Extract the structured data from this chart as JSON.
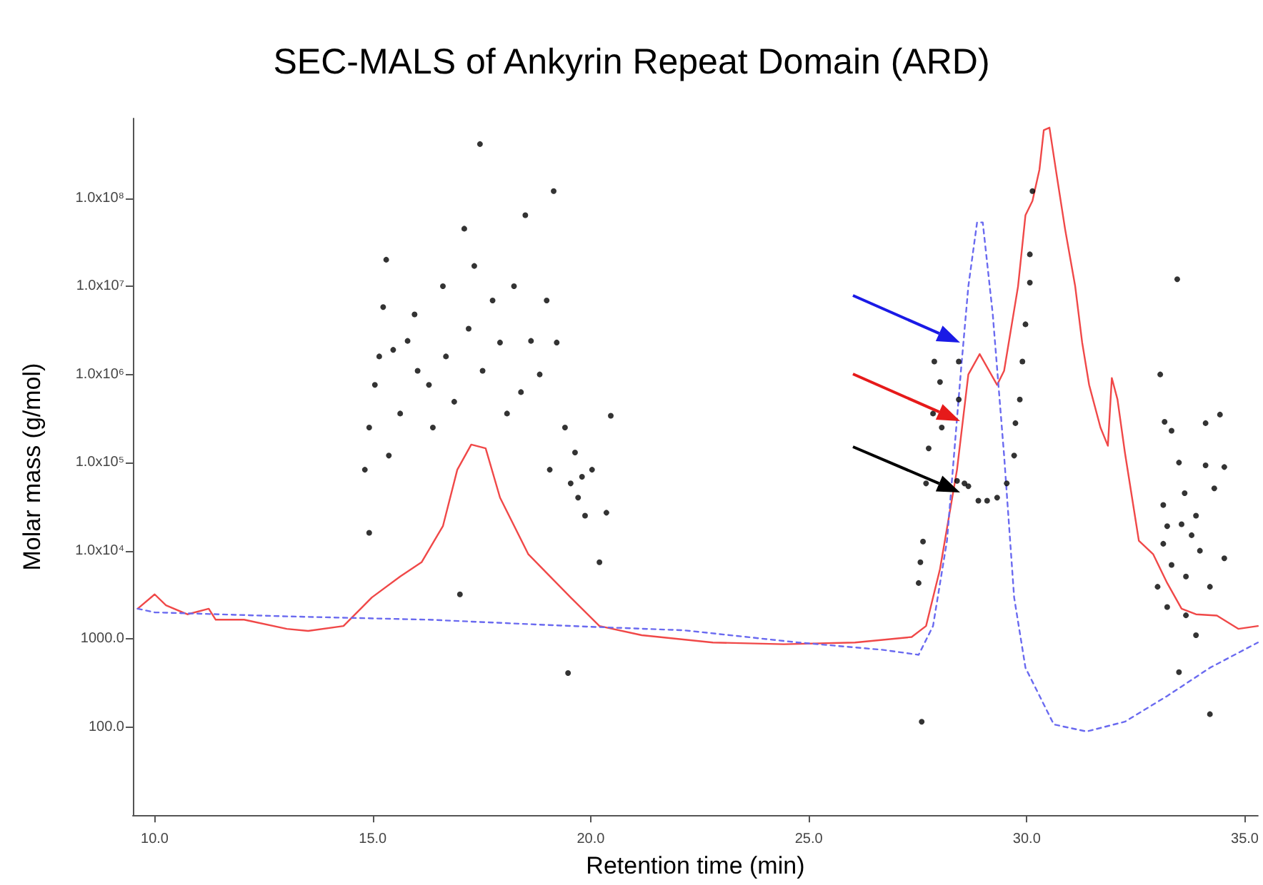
{
  "chart_data": {
    "type": "line",
    "title": "SEC-MALS of Ankyrin Repeat Domain (ARD)",
    "xlabel": "Retention time (min)",
    "ylabel": "Molar mass (g/mol)",
    "log": "y",
    "xlim": [
      9.5,
      35.3
    ],
    "ylim": [
      10,
      800000000
    ],
    "xticks": [
      {
        "value": 10,
        "label": "10.0"
      },
      {
        "value": 15,
        "label": "15.0"
      },
      {
        "value": 20,
        "label": "20.0"
      },
      {
        "value": 25,
        "label": "25.0"
      },
      {
        "value": 30,
        "label": "30.0"
      },
      {
        "value": 35,
        "label": "35.0"
      }
    ],
    "yticks": [
      {
        "value": 100,
        "label": "100.0"
      },
      {
        "value": 1000,
        "label": "1000.0"
      },
      {
        "value": 10000,
        "label": "1.0x10⁴"
      },
      {
        "value": 100000,
        "label": "1.0x10⁵"
      },
      {
        "value": 1000000,
        "label": "1.0x10⁶"
      },
      {
        "value": 10000000,
        "label": "1.0x10⁷"
      },
      {
        "value": 100000000,
        "label": "1.0x10⁸"
      }
    ],
    "series": [
      {
        "color": "#f04848",
        "line_style": "solid",
        "marker": "none",
        "x": [
          9.61,
          10.0,
          10.26,
          10.75,
          11.24,
          11.4,
          12.05,
          13.03,
          13.52,
          14.33,
          14.98,
          15.63,
          16.12,
          16.61,
          16.94,
          17.26,
          17.59,
          17.92,
          18.57,
          19.54,
          20.2,
          21.17,
          22.8,
          24.43,
          26.06,
          27.36,
          27.69,
          28.01,
          28.4,
          28.66,
          28.92,
          29.32,
          29.48,
          29.8,
          29.97,
          30.13,
          30.29,
          30.39,
          30.52,
          30.68,
          30.88,
          31.11,
          31.27,
          31.43,
          31.69,
          31.86,
          31.95,
          32.08,
          32.25,
          32.57,
          32.9,
          33.22,
          33.55,
          33.88,
          34.36,
          34.85,
          35.3
        ],
        "values": [
          2200,
          3200,
          2400,
          1900,
          2200,
          1650,
          1650,
          1300,
          1230,
          1400,
          2950,
          5100,
          7400,
          19000,
          83000,
          160000,
          145000,
          40000,
          9100,
          2950,
          1400,
          1100,
          910,
          870,
          910,
          1050,
          1400,
          6200,
          83000,
          1000000,
          1700000,
          760000,
          1100000,
          10000000,
          64000000,
          93000000,
          210000000,
          590000000,
          630000000,
          190000000,
          44000000,
          10000000,
          2300000,
          760000,
          250000,
          155000,
          910000,
          520000,
          130000,
          13000,
          9100,
          4300,
          2200,
          1900,
          1840,
          1300,
          1400
        ]
      },
      {
        "color": "#6a6af0",
        "line_style": "dashed",
        "marker": "none",
        "x": [
          9.61,
          10.0,
          13.03,
          16.29,
          19.54,
          22.15,
          24.76,
          26.71,
          27.52,
          27.85,
          28.17,
          28.49,
          28.66,
          28.86,
          28.99,
          29.22,
          29.48,
          29.71,
          29.97,
          30.62,
          31.37,
          32.25,
          33.22,
          34.2,
          35.3
        ],
        "values": [
          2200,
          2000,
          1800,
          1650,
          1400,
          1250,
          910,
          750,
          660,
          1400,
          13000,
          1100000,
          10000000,
          53000000,
          53000000,
          4800000,
          120000,
          2950,
          470,
          107,
          89,
          115,
          225,
          470,
          910
        ]
      },
      {
        "type": "scatter",
        "color": "#000000",
        "marker": "circle",
        "x": [
          14.82,
          14.92,
          15.05,
          15.15,
          15.24,
          15.31,
          15.37,
          14.92,
          15.47,
          15.63,
          15.8,
          15.96,
          16.03,
          16.29,
          16.38,
          16.61,
          16.68,
          16.87,
          17.0,
          17.1,
          17.2,
          17.33,
          17.46,
          17.52,
          17.75,
          17.92,
          18.08,
          18.24,
          18.4,
          18.5,
          18.63,
          18.83,
          18.99,
          19.15,
          19.22,
          19.06,
          19.41,
          19.48,
          19.54,
          19.64,
          19.71,
          19.8,
          19.87,
          20.03,
          20.2,
          20.36,
          20.46,
          27.52,
          27.56,
          27.59,
          27.62,
          27.69,
          27.75,
          27.85,
          27.88,
          28.01,
          28.05,
          28.4,
          28.44,
          28.44,
          28.57,
          28.66,
          28.89,
          29.09,
          29.32,
          29.54,
          29.71,
          29.74,
          29.84,
          29.9,
          29.97,
          30.07,
          30.07,
          30.13,
          33.0,
          33.06,
          33.45,
          33.16,
          33.32,
          34.1,
          34.43,
          33.49,
          34.1,
          34.53,
          33.13,
          33.62,
          33.88,
          34.3,
          33.22,
          33.55,
          33.78,
          33.97,
          33.13,
          33.32,
          33.65,
          34.2,
          34.53,
          33.22,
          33.65,
          33.88,
          33.49,
          34.2
        ],
        "values": [
          83000,
          250000,
          760000,
          1600000,
          5800000,
          20000000,
          120000,
          16000,
          1900000,
          360000,
          2400000,
          4800000,
          1100000,
          760000,
          250000,
          10000000,
          1600000,
          490000,
          3200,
          45000000,
          3300000,
          17000000,
          410000000,
          1100000,
          6900000,
          2300000,
          360000,
          10000000,
          630000,
          64000000,
          2400000,
          1000000,
          6900000,
          120000000,
          2300000,
          83000,
          250000,
          410,
          58000,
          130000,
          40000,
          69000,
          25000,
          83000,
          7400,
          27000,
          340000,
          4300,
          7400,
          115,
          12700,
          58000,
          145000,
          360000,
          1400000,
          820000,
          250000,
          62000,
          1400000,
          520000,
          58000,
          54000,
          37000,
          37000,
          40000,
          58000,
          120000,
          280000,
          520000,
          1400000,
          3700000,
          11000000,
          23000000,
          120000000,
          3900,
          1000000,
          12000000,
          290000,
          230000,
          280000,
          350000,
          100000,
          93000,
          89000,
          33000,
          45000,
          25000,
          51000,
          19000,
          20000,
          15000,
          10000,
          12000,
          6900,
          5100,
          3900,
          8200,
          2300,
          1850,
          1100,
          420,
          140
        ]
      }
    ]
  }
}
